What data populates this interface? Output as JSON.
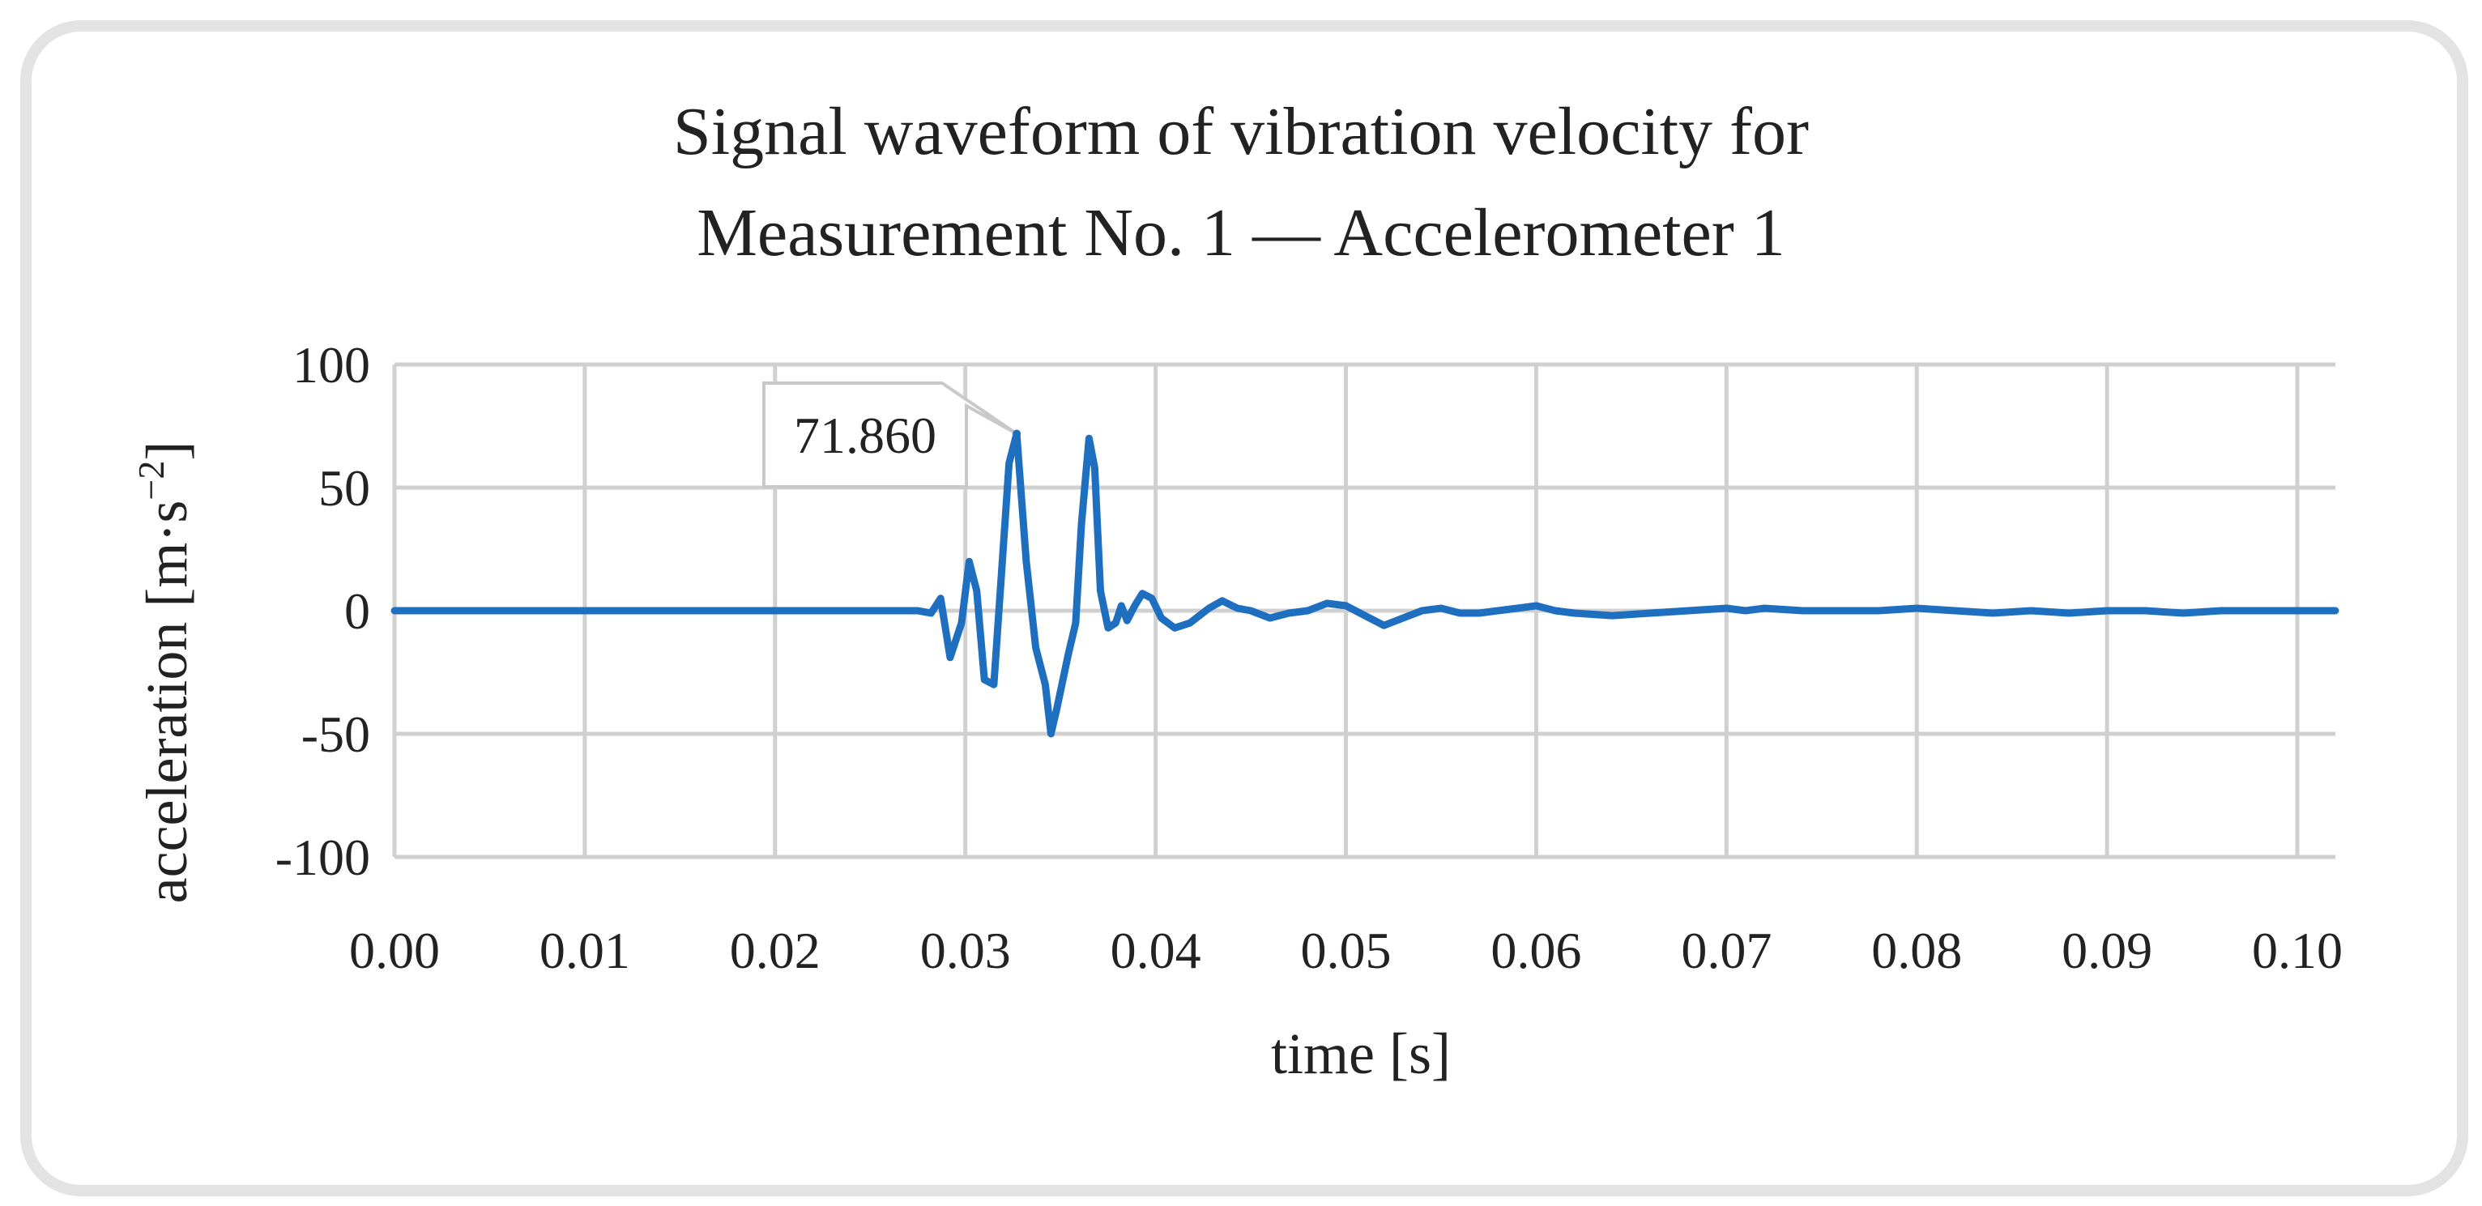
{
  "chart_data": {
    "type": "line",
    "title": [
      "Signal waveform of vibration velocity for",
      "Measurement No. 1 — Accelerometer 1"
    ],
    "xlabel": "time [s]",
    "ylabel": "acceleration [m·s⁻²]",
    "ylabel_parts": {
      "main": "acceleration [m·s",
      "sup": "−2",
      "end": "]"
    },
    "xlim": [
      0,
      0.102
    ],
    "ylim": [
      -100,
      100
    ],
    "x_ticks": [
      0,
      0.01,
      0.02,
      0.03,
      0.04,
      0.05,
      0.06,
      0.07,
      0.08,
      0.09,
      0.1
    ],
    "x_tick_labels": [
      "0.00",
      "0.01",
      "0.02",
      "0.03",
      "0.04",
      "0.05",
      "0.06",
      "0.07",
      "0.08",
      "0.09",
      "0.10"
    ],
    "y_ticks": [
      100,
      50,
      0,
      -50,
      -100
    ],
    "y_tick_labels": [
      "100",
      "50",
      "0",
      "-50",
      "-100"
    ],
    "grid": true,
    "line_color": "#1e6fc0",
    "series": [
      {
        "name": "Accelerometer 1",
        "points": [
          [
            0,
            0
          ],
          [
            0.005,
            0
          ],
          [
            0.01,
            0
          ],
          [
            0.015,
            0
          ],
          [
            0.02,
            0
          ],
          [
            0.025,
            0
          ],
          [
            0.0275,
            0
          ],
          [
            0.0282,
            -1
          ],
          [
            0.0287,
            5
          ],
          [
            0.0292,
            -19
          ],
          [
            0.0298,
            -5
          ],
          [
            0.0302,
            20
          ],
          [
            0.0306,
            8
          ],
          [
            0.031,
            -28
          ],
          [
            0.0315,
            -30
          ],
          [
            0.0319,
            15
          ],
          [
            0.0323,
            60
          ],
          [
            0.0327,
            71.86
          ],
          [
            0.0332,
            20
          ],
          [
            0.0337,
            -15
          ],
          [
            0.0342,
            -30
          ],
          [
            0.0345,
            -50
          ],
          [
            0.0348,
            -40
          ],
          [
            0.0354,
            -18
          ],
          [
            0.0358,
            -5
          ],
          [
            0.0361,
            35
          ],
          [
            0.0365,
            70
          ],
          [
            0.0368,
            58
          ],
          [
            0.0371,
            8
          ],
          [
            0.0375,
            -7
          ],
          [
            0.0379,
            -5
          ],
          [
            0.0382,
            2
          ],
          [
            0.0385,
            -4
          ],
          [
            0.0389,
            2
          ],
          [
            0.0393,
            7
          ],
          [
            0.0398,
            5
          ],
          [
            0.0403,
            -3
          ],
          [
            0.041,
            -7
          ],
          [
            0.0418,
            -5
          ],
          [
            0.0428,
            1
          ],
          [
            0.0435,
            4
          ],
          [
            0.0443,
            1
          ],
          [
            0.045,
            0
          ],
          [
            0.046,
            -3
          ],
          [
            0.047,
            -1
          ],
          [
            0.048,
            0
          ],
          [
            0.049,
            3
          ],
          [
            0.05,
            2
          ],
          [
            0.051,
            -2
          ],
          [
            0.052,
            -6
          ],
          [
            0.053,
            -3
          ],
          [
            0.054,
            0
          ],
          [
            0.055,
            1
          ],
          [
            0.056,
            -1
          ],
          [
            0.057,
            -1
          ],
          [
            0.058,
            0
          ],
          [
            0.059,
            1
          ],
          [
            0.06,
            2
          ],
          [
            0.061,
            0
          ],
          [
            0.062,
            -1
          ],
          [
            0.064,
            -2
          ],
          [
            0.066,
            -1
          ],
          [
            0.068,
            0
          ],
          [
            0.07,
            1
          ],
          [
            0.071,
            0
          ],
          [
            0.072,
            1
          ],
          [
            0.074,
            0
          ],
          [
            0.076,
            0
          ],
          [
            0.078,
            0
          ],
          [
            0.08,
            1
          ],
          [
            0.082,
            0
          ],
          [
            0.084,
            -1
          ],
          [
            0.086,
            0
          ],
          [
            0.088,
            -1
          ],
          [
            0.09,
            0
          ],
          [
            0.092,
            0
          ],
          [
            0.094,
            -1
          ],
          [
            0.096,
            0
          ],
          [
            0.098,
            0
          ],
          [
            0.1,
            0
          ],
          [
            0.102,
            0
          ]
        ]
      }
    ],
    "annotations": [
      {
        "x": 0.0327,
        "y": 71.86,
        "text": "71.860"
      }
    ]
  }
}
